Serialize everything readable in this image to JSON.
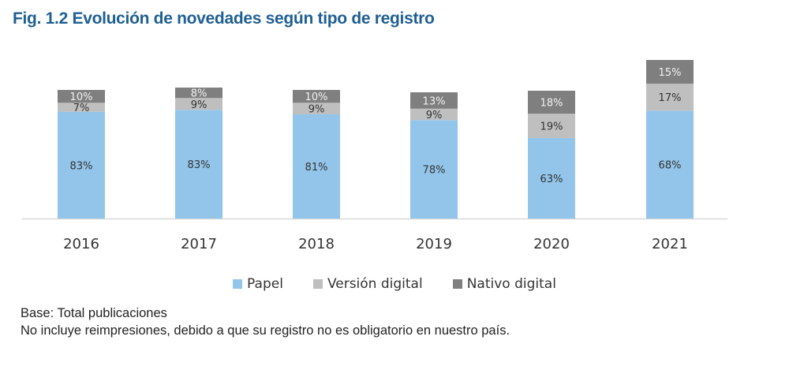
{
  "title": "Fig. 1.2 Evolución de novedades según tipo de registro",
  "notes": {
    "base": "Base: Total publicaciones",
    "disclaimer": "No incluye reimpresiones, debido a que su registro no es obligatorio en nuestro país."
  },
  "chart_data": {
    "type": "bar",
    "stacked": true,
    "title": "Fig. 1.2 Evolución de novedades según tipo de registro",
    "xlabel": "",
    "ylabel": "",
    "categories": [
      "2016",
      "2017",
      "2018",
      "2019",
      "2020",
      "2021"
    ],
    "series": [
      {
        "name": "Papel",
        "color": "#93c5ea",
        "values": [
          83,
          83,
          81,
          78,
          63,
          68
        ],
        "labels": [
          "83%",
          "83%",
          "81%",
          "78%",
          "63%",
          "68%"
        ]
      },
      {
        "name": "Versión digital",
        "color": "#bfbfbf",
        "values": [
          7,
          9,
          9,
          9,
          19,
          17
        ],
        "labels": [
          "7%",
          "9%",
          "9%",
          "9%",
          "19%",
          "17%"
        ]
      },
      {
        "name": "Nativo digital",
        "color": "#7f7f7f",
        "values": [
          10,
          8,
          10,
          13,
          18,
          15
        ],
        "labels": [
          "10%",
          "8%",
          "10%",
          "13%",
          "18%",
          "15%"
        ]
      }
    ],
    "legend": "bottom",
    "grid": false
  }
}
